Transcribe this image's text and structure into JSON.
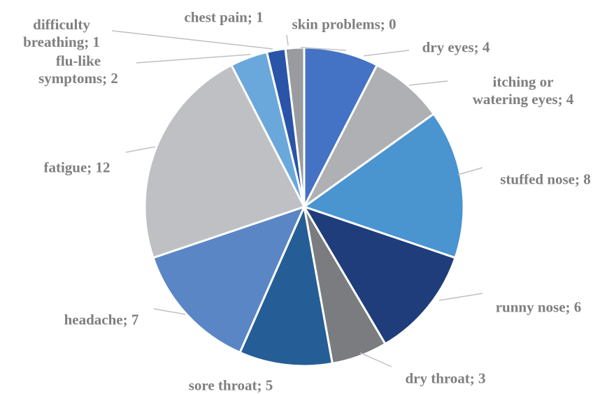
{
  "chart_data": {
    "type": "pie",
    "values": [
      4,
      4,
      8,
      6,
      3,
      5,
      7,
      12,
      2,
      1,
      1,
      0
    ],
    "value_labels": [
      "dry eyes; 4",
      "itching or watering eyes; 4",
      "stuffed nose; 8",
      "runny nose; 6",
      "dry throat; 3",
      "sore throat; 5",
      "headache; 7",
      "fatigue; 12",
      "flu-like symptoms; 2",
      "difficulty breathing; 1",
      "chest pain; 1",
      "skin problems; 0"
    ],
    "colors": [
      "#4472c4",
      "#afb0b4",
      "#4a94d0",
      "#1f3d7a",
      "#7b7c80",
      "#255e96",
      "#5b86c5",
      "#bfc0c4",
      "#6aa8dc",
      "#2a54a8",
      "#9a9b9f",
      "#c8c9cc"
    ]
  }
}
